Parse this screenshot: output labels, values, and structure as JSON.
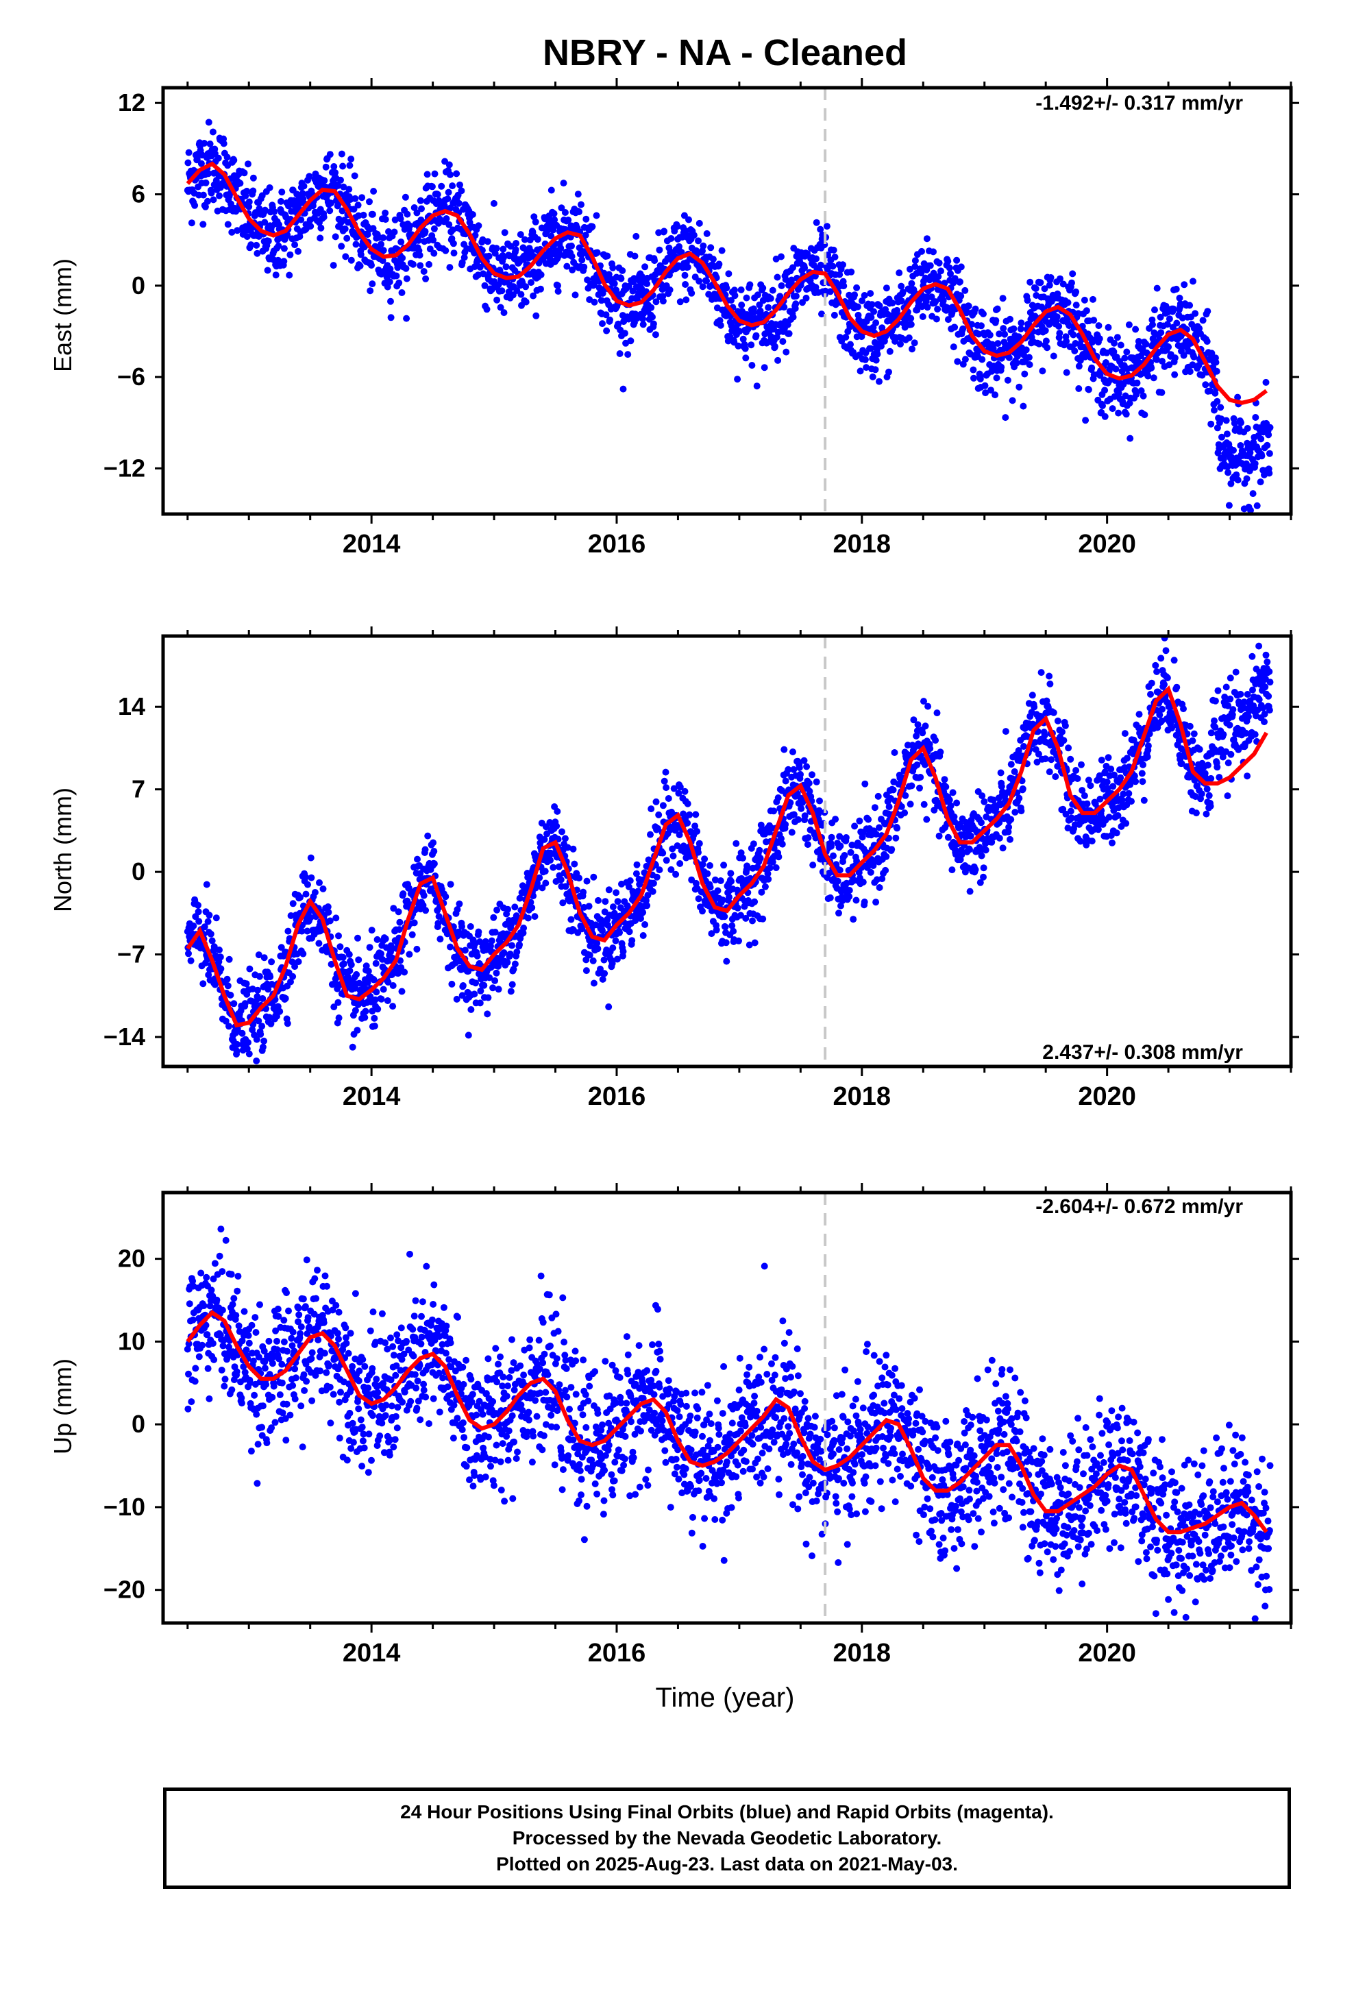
{
  "title": "NBRY  - NA - Cleaned",
  "xlabel": "Time (year)",
  "footer": {
    "line1": "24 Hour Positions Using Final Orbits (blue) and Rapid Orbits (magenta).",
    "line2": "Processed by the Nevada Geodetic Laboratory.",
    "line3": "Plotted on 2025-Aug-23. Last data on 2021-May-03."
  },
  "colors": {
    "points": "#0000ff",
    "model": "#ff0000",
    "reference_line": "#c8c8c8",
    "frame": "#000000"
  },
  "chart_data": [
    {
      "type": "scatter",
      "component": "East",
      "ylabel": "East (mm)",
      "velocity_label": "-1.492+/- 0.317 mm/yr",
      "xlim": [
        2012.3,
        2021.5
      ],
      "ylim": [
        -15,
        13
      ],
      "yticks": [
        12,
        6,
        0,
        -6,
        -12
      ],
      "yticklabels": [
        "12",
        "6",
        "0",
        "−6",
        "−12"
      ],
      "xticks": [
        2014,
        2016,
        2018,
        2020
      ],
      "reference_line_x": 2017.7,
      "trend_rate": -1.492,
      "model_curve": {
        "x": [
          2012.5,
          2012.6,
          2012.7,
          2012.8,
          2012.9,
          2013.0,
          2013.1,
          2013.2,
          2013.3,
          2013.4,
          2013.5,
          2013.6,
          2013.7,
          2013.8,
          2013.9,
          2014.0,
          2014.1,
          2014.2,
          2014.3,
          2014.4,
          2014.5,
          2014.6,
          2014.7,
          2014.8,
          2014.9,
          2015.0,
          2015.1,
          2015.2,
          2015.3,
          2015.4,
          2015.5,
          2015.6,
          2015.7,
          2015.8,
          2015.9,
          2016.0,
          2016.1,
          2016.2,
          2016.3,
          2016.4,
          2016.5,
          2016.6,
          2016.7,
          2016.8,
          2016.9,
          2017.0,
          2017.1,
          2017.2,
          2017.3,
          2017.4,
          2017.5,
          2017.6,
          2017.7,
          2017.8,
          2017.9,
          2018.0,
          2018.1,
          2018.2,
          2018.3,
          2018.4,
          2018.5,
          2018.6,
          2018.7,
          2018.8,
          2018.9,
          2019.0,
          2019.1,
          2019.2,
          2019.3,
          2019.4,
          2019.5,
          2019.6,
          2019.7,
          2019.8,
          2019.9,
          2020.0,
          2020.1,
          2020.2,
          2020.3,
          2020.4,
          2020.5,
          2020.6,
          2020.7,
          2020.8,
          2020.9,
          2021.0,
          2021.1,
          2021.2,
          2021.3
        ],
        "y": [
          6.7,
          7.6,
          8.0,
          7.3,
          5.8,
          4.4,
          3.6,
          3.3,
          3.6,
          4.6,
          5.6,
          6.3,
          6.2,
          5.0,
          3.5,
          2.4,
          1.9,
          2.0,
          2.7,
          3.8,
          4.6,
          4.9,
          4.6,
          3.4,
          1.8,
          0.8,
          0.5,
          0.6,
          1.3,
          2.3,
          3.1,
          3.5,
          3.3,
          1.9,
          0.1,
          -1.0,
          -1.3,
          -1.1,
          -0.3,
          0.9,
          1.8,
          2.1,
          1.5,
          0.2,
          -1.3,
          -2.3,
          -2.6,
          -2.4,
          -1.6,
          -0.5,
          0.4,
          0.9,
          0.8,
          -0.5,
          -2.1,
          -3.0,
          -3.3,
          -3.0,
          -2.2,
          -1.1,
          -0.2,
          0.1,
          -0.2,
          -1.6,
          -3.3,
          -4.3,
          -4.6,
          -4.4,
          -3.7,
          -2.6,
          -1.7,
          -1.4,
          -1.9,
          -3.2,
          -4.8,
          -5.8,
          -6.1,
          -5.9,
          -5.2,
          -4.1,
          -3.2,
          -2.9,
          -3.5,
          -5.0,
          -6.6,
          -7.5,
          -7.7,
          -7.5,
          -6.9
        ]
      }
    },
    {
      "type": "scatter",
      "component": "North",
      "ylabel": "North (mm)",
      "velocity_label": "2.437+/- 0.308 mm/yr",
      "xlim": [
        2012.3,
        2021.5
      ],
      "ylim": [
        -16.5,
        20
      ],
      "yticks": [
        14,
        7,
        0,
        -7,
        -14
      ],
      "yticklabels": [
        "14",
        "7",
        "0",
        "−7",
        "−14"
      ],
      "xticks": [
        2014,
        2016,
        2018,
        2020
      ],
      "reference_line_x": 2017.7,
      "trend_rate": 2.437,
      "model_curve": {
        "x": [
          2012.5,
          2012.6,
          2012.7,
          2012.8,
          2012.9,
          2013.0,
          2013.1,
          2013.2,
          2013.3,
          2013.4,
          2013.5,
          2013.6,
          2013.7,
          2013.8,
          2013.9,
          2014.0,
          2014.1,
          2014.2,
          2014.3,
          2014.4,
          2014.5,
          2014.6,
          2014.7,
          2014.8,
          2014.9,
          2015.0,
          2015.1,
          2015.2,
          2015.3,
          2015.4,
          2015.5,
          2015.6,
          2015.7,
          2015.8,
          2015.9,
          2016.0,
          2016.1,
          2016.2,
          2016.3,
          2016.4,
          2016.5,
          2016.6,
          2016.7,
          2016.8,
          2016.9,
          2017.0,
          2017.1,
          2017.2,
          2017.3,
          2017.4,
          2017.5,
          2017.6,
          2017.7,
          2017.8,
          2017.9,
          2018.0,
          2018.1,
          2018.2,
          2018.3,
          2018.4,
          2018.5,
          2018.6,
          2018.7,
          2018.8,
          2018.9,
          2019.0,
          2019.1,
          2019.2,
          2019.3,
          2019.4,
          2019.5,
          2019.6,
          2019.7,
          2019.8,
          2019.9,
          2020.0,
          2020.1,
          2020.2,
          2020.3,
          2020.4,
          2020.5,
          2020.6,
          2020.7,
          2020.8,
          2020.9,
          2021.0,
          2021.1,
          2021.2,
          2021.3
        ],
        "y": [
          -6.5,
          -5.0,
          -7.5,
          -10.5,
          -13.0,
          -12.8,
          -11.5,
          -10.5,
          -8.0,
          -4.5,
          -2.5,
          -4.0,
          -7.5,
          -10.5,
          -10.8,
          -10.0,
          -9.0,
          -7.5,
          -4.0,
          -1.0,
          -0.5,
          -3.5,
          -6.5,
          -8.0,
          -8.3,
          -7.0,
          -6.0,
          -4.5,
          -1.5,
          2.0,
          2.5,
          0.0,
          -3.5,
          -5.5,
          -5.8,
          -4.5,
          -3.5,
          -2.0,
          1.0,
          4.0,
          4.8,
          2.5,
          -1.0,
          -3.0,
          -3.3,
          -2.0,
          -1.0,
          0.5,
          3.5,
          6.5,
          7.3,
          5.0,
          1.5,
          -0.3,
          -0.3,
          0.8,
          1.8,
          3.2,
          6.0,
          9.5,
          10.5,
          8.0,
          4.5,
          2.5,
          2.5,
          3.5,
          4.5,
          5.8,
          8.5,
          12.0,
          13.0,
          10.5,
          6.5,
          5.0,
          5.0,
          6.0,
          7.0,
          8.5,
          11.5,
          14.5,
          15.5,
          12.5,
          8.5,
          7.5,
          7.5,
          8.0,
          9.0,
          10.0,
          11.8
        ]
      }
    },
    {
      "type": "scatter",
      "component": "Up",
      "ylabel": "Up (mm)",
      "velocity_label": "-2.604+/- 0.672 mm/yr",
      "xlim": [
        2012.3,
        2021.5
      ],
      "ylim": [
        -24,
        28
      ],
      "yticks": [
        20,
        10,
        0,
        -10,
        -20
      ],
      "yticklabels": [
        "20",
        "10",
        "0",
        "−10",
        "−20"
      ],
      "xticks": [
        2014,
        2016,
        2018,
        2020
      ],
      "reference_line_x": 2017.7,
      "trend_rate": -2.604,
      "model_curve": {
        "x": [
          2012.5,
          2012.6,
          2012.7,
          2012.8,
          2012.9,
          2013.0,
          2013.1,
          2013.2,
          2013.3,
          2013.4,
          2013.5,
          2013.6,
          2013.7,
          2013.8,
          2013.9,
          2014.0,
          2014.1,
          2014.2,
          2014.3,
          2014.4,
          2014.5,
          2014.6,
          2014.7,
          2014.8,
          2014.9,
          2015.0,
          2015.1,
          2015.2,
          2015.3,
          2015.4,
          2015.5,
          2015.6,
          2015.7,
          2015.8,
          2015.9,
          2016.0,
          2016.1,
          2016.2,
          2016.3,
          2016.4,
          2016.5,
          2016.6,
          2016.7,
          2016.8,
          2016.9,
          2017.0,
          2017.1,
          2017.2,
          2017.3,
          2017.4,
          2017.5,
          2017.6,
          2017.7,
          2017.8,
          2017.9,
          2018.0,
          2018.1,
          2018.2,
          2018.3,
          2018.4,
          2018.5,
          2018.6,
          2018.7,
          2018.8,
          2018.9,
          2019.0,
          2019.1,
          2019.2,
          2019.3,
          2019.4,
          2019.5,
          2019.6,
          2019.7,
          2019.8,
          2019.9,
          2020.0,
          2020.1,
          2020.2,
          2020.3,
          2020.4,
          2020.5,
          2020.6,
          2020.7,
          2020.8,
          2020.9,
          2021.0,
          2021.1,
          2021.2,
          2021.3
        ],
        "y": [
          10.0,
          12.0,
          13.5,
          12.5,
          9.5,
          7.0,
          5.5,
          5.5,
          6.5,
          8.5,
          10.5,
          11.0,
          9.5,
          6.5,
          3.5,
          2.5,
          3.0,
          4.5,
          6.5,
          8.0,
          8.5,
          7.0,
          3.5,
          0.5,
          -0.5,
          0.0,
          1.5,
          3.5,
          5.0,
          5.5,
          4.0,
          0.5,
          -2.0,
          -2.5,
          -2.0,
          -0.5,
          1.0,
          2.5,
          3.0,
          1.5,
          -2.0,
          -4.5,
          -5.0,
          -4.5,
          -3.5,
          -2.0,
          -0.5,
          1.0,
          3.0,
          2.0,
          -1.5,
          -4.5,
          -5.5,
          -5.0,
          -4.0,
          -2.5,
          -1.0,
          0.5,
          0.0,
          -3.0,
          -6.5,
          -8.0,
          -8.0,
          -7.0,
          -5.5,
          -4.0,
          -2.5,
          -2.5,
          -5.0,
          -8.5,
          -10.5,
          -10.5,
          -9.5,
          -8.5,
          -7.5,
          -6.0,
          -5.0,
          -5.5,
          -8.5,
          -11.5,
          -13.0,
          -13.0,
          -12.5,
          -12.0,
          -11.0,
          -10.0,
          -9.5,
          -11.0,
          -13.0
        ]
      }
    }
  ]
}
